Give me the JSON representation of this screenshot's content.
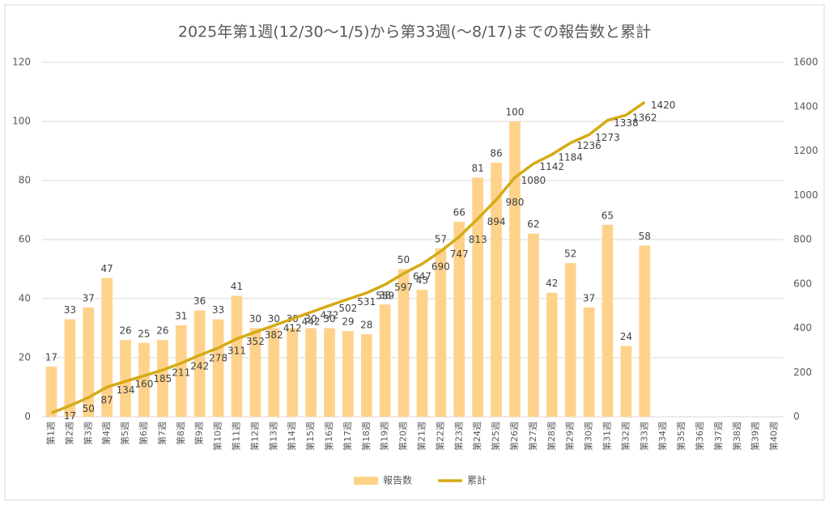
{
  "chart_data": {
    "type": "bar",
    "title": "2025年第1週(12/30～1/5)から第33週(～8/17)までの報告数と累計",
    "categories": [
      "第1週",
      "第2週",
      "第3週",
      "第4週",
      "第5週",
      "第6週",
      "第7週",
      "第8週",
      "第9週",
      "第10週",
      "第11週",
      "第12週",
      "第13週",
      "第14週",
      "第15週",
      "第16週",
      "第17週",
      "第18週",
      "第19週",
      "第20週",
      "第21週",
      "第22週",
      "第23週",
      "第24週",
      "第25週",
      "第26週",
      "第27週",
      "第28週",
      "第29週",
      "第30週",
      "第31週",
      "第32週",
      "第33週",
      "第34週",
      "第35週",
      "第36週",
      "第37週",
      "第38週",
      "第39週",
      "第40週"
    ],
    "series": [
      {
        "name": "報告数",
        "type": "bar",
        "color": "#ffd28c",
        "values": [
          17,
          33,
          37,
          47,
          26,
          25,
          26,
          31,
          36,
          33,
          41,
          30,
          30,
          30,
          30,
          30,
          29,
          28,
          38,
          50,
          43,
          57,
          66,
          81,
          86,
          100,
          62,
          42,
          52,
          37,
          65,
          24,
          58,
          null,
          null,
          null,
          null,
          null,
          null,
          null
        ]
      },
      {
        "name": "累計",
        "type": "line",
        "axis": "y2",
        "color": "#d6aa14",
        "values": [
          17,
          50,
          87,
          134,
          160,
          185,
          211,
          242,
          278,
          311,
          352,
          382,
          412,
          442,
          472,
          502,
          531,
          559,
          597,
          647,
          690,
          747,
          813,
          894,
          980,
          1080,
          1142,
          1184,
          1236,
          1273,
          1338,
          1362,
          1420,
          null,
          null,
          null,
          null,
          null,
          null,
          null
        ]
      }
    ],
    "ylim": [
      0,
      120
    ],
    "yticks": [
      0,
      20,
      40,
      60,
      80,
      100,
      120
    ],
    "y2lim": [
      0,
      1600
    ],
    "y2ticks": [
      0,
      200,
      400,
      600,
      800,
      1000,
      1200,
      1400,
      1600
    ],
    "grid": true,
    "legend": "bottom"
  }
}
